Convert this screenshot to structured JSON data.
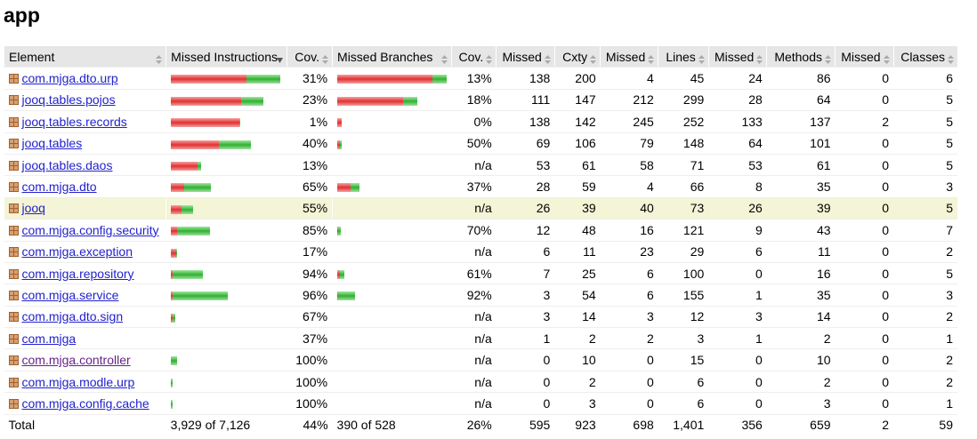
{
  "title": "app",
  "table": {
    "header": [
      "Element",
      "Missed Instructions",
      "Cov.",
      "Missed Branches",
      "Cov.",
      "Missed",
      "Cxty",
      "Missed",
      "Lines",
      "Missed",
      "Methods",
      "Missed",
      "Classes"
    ],
    "rows": [
      {
        "element": "com.mjga.dto.urp",
        "instr_bar": [
          85,
          38
        ],
        "instr_cov": "31%",
        "branch_bar": [
          107,
          16
        ],
        "branch_cov": "13%",
        "cells": [
          "138",
          "200",
          "4",
          "45",
          "24",
          "86",
          "0",
          "6"
        ]
      },
      {
        "element": "jooq.tables.pojos",
        "instr_bar": [
          79,
          25
        ],
        "instr_cov": "23%",
        "branch_bar": [
          74,
          16
        ],
        "branch_cov": "18%",
        "cells": [
          "111",
          "147",
          "212",
          "299",
          "28",
          "64",
          "0",
          "5"
        ]
      },
      {
        "element": "jooq.tables.records",
        "instr_bar": [
          77,
          1
        ],
        "instr_cov": "1%",
        "branch_bar": [
          5,
          0
        ],
        "branch_cov": "0%",
        "cells": [
          "138",
          "142",
          "245",
          "252",
          "133",
          "137",
          "2",
          "5"
        ]
      },
      {
        "element": "jooq.tables",
        "instr_bar": [
          54,
          36
        ],
        "instr_cov": "40%",
        "branch_bar": [
          3,
          2
        ],
        "branch_cov": "50%",
        "cells": [
          "69",
          "106",
          "79",
          "148",
          "64",
          "101",
          "0",
          "5"
        ]
      },
      {
        "element": "jooq.tables.daos",
        "instr_bar": [
          30,
          4
        ],
        "instr_cov": "13%",
        "branch_bar": [
          0,
          0
        ],
        "branch_cov": "n/a",
        "cells": [
          "53",
          "61",
          "58",
          "71",
          "53",
          "61",
          "0",
          "5"
        ]
      },
      {
        "element": "com.mjga.dto",
        "instr_bar": [
          15,
          30
        ],
        "instr_cov": "65%",
        "branch_bar": [
          15,
          10
        ],
        "branch_cov": "37%",
        "cells": [
          "28",
          "59",
          "4",
          "66",
          "8",
          "35",
          "0",
          "3"
        ]
      },
      {
        "element": "jooq",
        "instr_bar": [
          12,
          13
        ],
        "instr_cov": "55%",
        "branch_bar": [
          0,
          0
        ],
        "branch_cov": "n/a",
        "cells": [
          "26",
          "39",
          "40",
          "73",
          "26",
          "39",
          "0",
          "5"
        ]
      },
      {
        "element": "com.mjga.config.security",
        "instr_bar": [
          7,
          37
        ],
        "instr_cov": "85%",
        "branch_bar": [
          1,
          3
        ],
        "branch_cov": "70%",
        "cells": [
          "12",
          "48",
          "16",
          "121",
          "9",
          "43",
          "0",
          "7"
        ]
      },
      {
        "element": "com.mjga.exception",
        "instr_bar": [
          6,
          1
        ],
        "instr_cov": "17%",
        "branch_bar": [
          0,
          0
        ],
        "branch_cov": "n/a",
        "cells": [
          "6",
          "11",
          "23",
          "29",
          "6",
          "11",
          "0",
          "2"
        ]
      },
      {
        "element": "com.mjga.repository",
        "instr_bar": [
          2,
          34
        ],
        "instr_cov": "94%",
        "branch_bar": [
          3,
          5
        ],
        "branch_cov": "61%",
        "cells": [
          "7",
          "25",
          "6",
          "100",
          "0",
          "16",
          "0",
          "5"
        ]
      },
      {
        "element": "com.mjga.service",
        "instr_bar": [
          2,
          62
        ],
        "instr_cov": "96%",
        "branch_bar": [
          1,
          19
        ],
        "branch_cov": "92%",
        "cells": [
          "3",
          "54",
          "6",
          "155",
          "1",
          "35",
          "0",
          "3"
        ]
      },
      {
        "element": "com.mjga.dto.sign",
        "instr_bar": [
          2,
          3
        ],
        "instr_cov": "67%",
        "branch_bar": [
          0,
          0
        ],
        "branch_cov": "n/a",
        "cells": [
          "3",
          "14",
          "3",
          "12",
          "3",
          "14",
          "0",
          "2"
        ]
      },
      {
        "element": "com.mjga",
        "instr_bar": [
          0,
          0
        ],
        "instr_cov": "37%",
        "branch_bar": [
          0,
          0
        ],
        "branch_cov": "n/a",
        "cells": [
          "1",
          "2",
          "2",
          "3",
          "1",
          "2",
          "0",
          "1"
        ]
      },
      {
        "element": "com.mjga.controller",
        "instr_bar": [
          0,
          7
        ],
        "instr_cov": "100%",
        "branch_bar": [
          0,
          0
        ],
        "branch_cov": "n/a",
        "cells": [
          "0",
          "10",
          "0",
          "15",
          "0",
          "10",
          "0",
          "2"
        ]
      },
      {
        "element": "com.mjga.modle.urp",
        "instr_bar": [
          0,
          2
        ],
        "instr_cov": "100%",
        "branch_bar": [
          0,
          0
        ],
        "branch_cov": "n/a",
        "cells": [
          "0",
          "2",
          "0",
          "6",
          "0",
          "2",
          "0",
          "2"
        ]
      },
      {
        "element": "com.mjga.config.cache",
        "instr_bar": [
          0,
          2
        ],
        "instr_cov": "100%",
        "branch_bar": [
          0,
          0
        ],
        "branch_cov": "n/a",
        "cells": [
          "0",
          "3",
          "0",
          "6",
          "0",
          "3",
          "0",
          "1"
        ]
      }
    ],
    "total": [
      "Total",
      "3,929 of 7,126",
      "44%",
      "390 of 528",
      "26%",
      "595",
      "923",
      "698",
      "1,401",
      "356",
      "659",
      "2",
      "59"
    ]
  }
}
